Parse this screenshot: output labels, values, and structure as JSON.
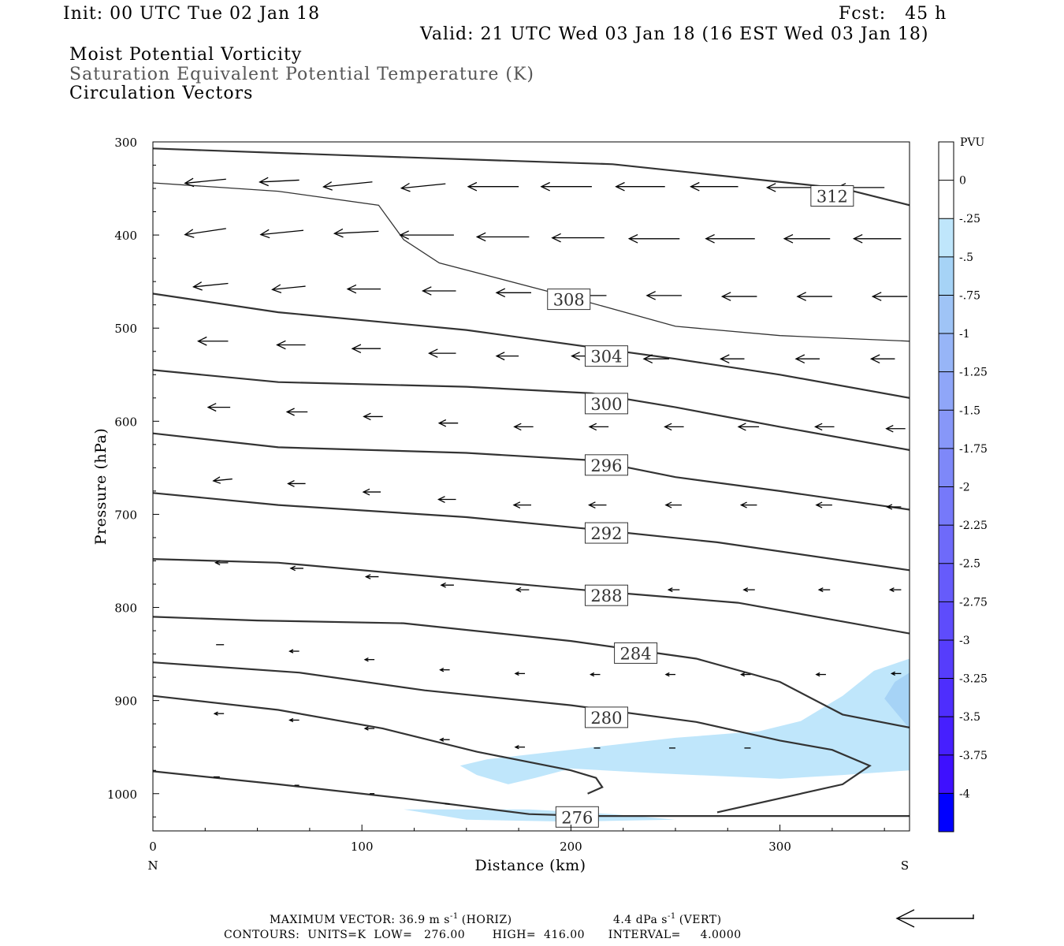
{
  "header": {
    "init": "Init: 00 UTC Tue 02 Jan 18",
    "fcst": "Fcst:   45 h",
    "valid": "Valid: 21 UTC Wed 03 Jan 18 (16 EST Wed 03 Jan 18)",
    "field1": "Moist Potential Vorticity",
    "field2": "Saturation Equivalent Potential Temperature (K)",
    "field3": "Circulation Vectors"
  },
  "colors": {
    "contour": "#333333",
    "pv_light": "#bfe6fb",
    "pv_mid": "#a6d3f6",
    "vector": "#000000"
  },
  "chart_data": {
    "type": "cross-section",
    "xlabel": "Distance (km)",
    "ylabel": "Pressure (hPa)",
    "xlim": [
      0,
      362
    ],
    "ylim": [
      300,
      1040
    ],
    "y_log_scale": false,
    "xticks": [
      0,
      100,
      200,
      300
    ],
    "yticks": [
      300,
      400,
      500,
      600,
      700,
      800,
      900,
      1000
    ],
    "x_end_labels": {
      "left": "N",
      "right": "S"
    },
    "theta_contours": [
      {
        "value": 312,
        "label": "312",
        "label_xy": [
          325,
          358
        ],
        "points": [
          [
            0,
            307
          ],
          [
            100,
            315
          ],
          [
            220,
            324
          ],
          [
            330,
            350
          ],
          [
            362,
            368
          ]
        ]
      },
      {
        "value": 308,
        "label": "308",
        "label_xy": [
          199,
          469
        ],
        "points": [
          [
            0,
            344
          ],
          [
            60,
            353
          ],
          [
            108,
            368
          ],
          [
            120,
            405
          ],
          [
            137,
            430
          ],
          [
            200,
            467
          ],
          [
            250,
            498
          ],
          [
            300,
            508
          ],
          [
            362,
            514
          ]
        ]
      },
      {
        "value": 304,
        "label": "304",
        "label_xy": [
          217,
          530
        ],
        "points": [
          [
            0,
            463
          ],
          [
            60,
            483
          ],
          [
            150,
            502
          ],
          [
            250,
            533
          ],
          [
            300,
            550
          ],
          [
            362,
            575
          ]
        ]
      },
      {
        "value": 300,
        "label": "300",
        "label_xy": [
          217,
          581
        ],
        "points": [
          [
            0,
            545
          ],
          [
            60,
            558
          ],
          [
            150,
            563
          ],
          [
            210,
            570
          ],
          [
            250,
            585
          ],
          [
            300,
            606
          ],
          [
            362,
            631
          ]
        ]
      },
      {
        "value": 296,
        "label": "296",
        "label_xy": [
          217,
          647
        ],
        "points": [
          [
            0,
            613
          ],
          [
            60,
            628
          ],
          [
            150,
            634
          ],
          [
            210,
            642
          ],
          [
            250,
            660
          ],
          [
            300,
            675
          ],
          [
            362,
            695
          ]
        ]
      },
      {
        "value": 292,
        "label": "292",
        "label_xy": [
          217,
          720
        ],
        "points": [
          [
            0,
            677
          ],
          [
            60,
            690
          ],
          [
            150,
            703
          ],
          [
            210,
            716
          ],
          [
            270,
            730
          ],
          [
            362,
            760
          ]
        ]
      },
      {
        "value": 288,
        "label": "288",
        "label_xy": [
          217,
          787
        ],
        "points": [
          [
            0,
            748
          ],
          [
            60,
            752
          ],
          [
            150,
            770
          ],
          [
            210,
            782
          ],
          [
            280,
            795
          ],
          [
            362,
            828
          ]
        ]
      },
      {
        "value": 284,
        "label": "284",
        "label_xy": [
          231,
          849
        ],
        "points": [
          [
            0,
            810
          ],
          [
            50,
            814
          ],
          [
            120,
            817
          ],
          [
            200,
            836
          ],
          [
            260,
            855
          ],
          [
            300,
            880
          ],
          [
            330,
            915
          ],
          [
            362,
            929
          ]
        ]
      },
      {
        "value": 280,
        "label": "280",
        "label_xy": [
          217,
          918
        ],
        "points": [
          [
            0,
            859
          ],
          [
            70,
            870
          ],
          [
            130,
            889
          ],
          [
            200,
            905
          ],
          [
            260,
            923
          ],
          [
            300,
            943
          ],
          [
            325,
            953
          ],
          [
            343,
            970
          ],
          [
            330,
            990
          ],
          [
            300,
            1005
          ],
          [
            270,
            1020
          ]
        ]
      },
      {
        "value": 276,
        "label": "276",
        "label_xy": [
          203,
          1025
        ],
        "points": [
          [
            0,
            895
          ],
          [
            60,
            910
          ],
          [
            110,
            930
          ],
          [
            155,
            955
          ],
          [
            200,
            975
          ],
          [
            212,
            983
          ],
          [
            215,
            993
          ],
          [
            208,
            1000
          ]
        ]
      },
      {
        "value": 276,
        "label": "",
        "label_xy": null,
        "points": [
          [
            0,
            976
          ],
          [
            60,
            990
          ],
          [
            120,
            1005
          ],
          [
            180,
            1022
          ],
          [
            210,
            1024
          ],
          [
            362,
            1024
          ]
        ]
      }
    ],
    "pv_shading": [
      {
        "level": "-0.25",
        "color": "#bfe6fb",
        "polygon": [
          [
            147,
            970
          ],
          [
            160,
            963
          ],
          [
            250,
            940
          ],
          [
            290,
            933
          ],
          [
            310,
            922
          ],
          [
            330,
            895
          ],
          [
            345,
            868
          ],
          [
            362,
            855
          ],
          [
            362,
            975
          ],
          [
            330,
            980
          ],
          [
            300,
            984
          ],
          [
            240,
            978
          ],
          [
            200,
            973
          ],
          [
            183,
            983
          ],
          [
            170,
            990
          ],
          [
            155,
            980
          ]
        ]
      },
      {
        "level": "-0.25",
        "color": "#bfe6fb",
        "polygon": [
          [
            120,
            1017
          ],
          [
            180,
            1017
          ],
          [
            220,
            1022
          ],
          [
            250,
            1028
          ],
          [
            200,
            1030
          ],
          [
            150,
            1028
          ]
        ]
      },
      {
        "level": "-0.5",
        "color": "#a6d3f6",
        "polygon": [
          [
            350,
            898
          ],
          [
            355,
            880
          ],
          [
            362,
            870
          ],
          [
            362,
            930
          ]
        ]
      }
    ],
    "vectors": [
      {
        "x": 35,
        "p": 340,
        "u": -1,
        "w": 0.02,
        "len": 26
      },
      {
        "x": 70,
        "p": 341,
        "u": -1,
        "w": 0.01,
        "len": 25
      },
      {
        "x": 105,
        "p": 343,
        "u": -1,
        "w": 0.02,
        "len": 31
      },
      {
        "x": 140,
        "p": 345,
        "u": -1,
        "w": 0.02,
        "len": 28
      },
      {
        "x": 175,
        "p": 348,
        "u": -1,
        "w": 0.0,
        "len": 32
      },
      {
        "x": 210,
        "p": 348,
        "u": -1,
        "w": 0.0,
        "len": 32
      },
      {
        "x": 245,
        "p": 348,
        "u": -1,
        "w": 0.0,
        "len": 31
      },
      {
        "x": 280,
        "p": 348,
        "u": -1,
        "w": 0.0,
        "len": 30
      },
      {
        "x": 315,
        "p": 349,
        "u": -1,
        "w": 0.0,
        "len": 28
      },
      {
        "x": 350,
        "p": 349,
        "u": -1,
        "w": 0.0,
        "len": 30
      },
      {
        "x": 35,
        "p": 393,
        "u": -1,
        "w": 0.03,
        "len": 26
      },
      {
        "x": 72,
        "p": 395,
        "u": -1,
        "w": 0.02,
        "len": 27
      },
      {
        "x": 108,
        "p": 396,
        "u": -1,
        "w": 0.01,
        "len": 28
      },
      {
        "x": 144,
        "p": 400,
        "u": -1,
        "w": 0.0,
        "len": 34
      },
      {
        "x": 180,
        "p": 402,
        "u": -1,
        "w": 0.0,
        "len": 33
      },
      {
        "x": 216,
        "p": 403,
        "u": -1,
        "w": 0.0,
        "len": 33
      },
      {
        "x": 252,
        "p": 404,
        "u": -1,
        "w": 0.0,
        "len": 32
      },
      {
        "x": 288,
        "p": 404,
        "u": -1,
        "w": 0.0,
        "len": 31
      },
      {
        "x": 324,
        "p": 404,
        "u": -1,
        "w": 0.0,
        "len": 29
      },
      {
        "x": 358,
        "p": 404,
        "u": -1,
        "w": 0.0,
        "len": 30
      },
      {
        "x": 36,
        "p": 452,
        "u": -1,
        "w": 0.02,
        "len": 22
      },
      {
        "x": 73,
        "p": 455,
        "u": -1,
        "w": 0.02,
        "len": 21
      },
      {
        "x": 109,
        "p": 458,
        "u": -1,
        "w": 0.0,
        "len": 21
      },
      {
        "x": 145,
        "p": 460,
        "u": -1,
        "w": 0.0,
        "len": 21
      },
      {
        "x": 181,
        "p": 462,
        "u": -1,
        "w": 0.0,
        "len": 22
      },
      {
        "x": 217,
        "p": 465,
        "u": -1,
        "w": 0.0,
        "len": 22
      },
      {
        "x": 253,
        "p": 465,
        "u": -1,
        "w": 0.0,
        "len": 22
      },
      {
        "x": 289,
        "p": 466,
        "u": -1,
        "w": 0.0,
        "len": 22
      },
      {
        "x": 325,
        "p": 466,
        "u": -1,
        "w": 0.0,
        "len": 22
      },
      {
        "x": 361,
        "p": 466,
        "u": -1,
        "w": 0.0,
        "len": 22
      },
      {
        "x": 36,
        "p": 514,
        "u": -1,
        "w": 0.0,
        "len": 19
      },
      {
        "x": 73,
        "p": 518,
        "u": -1,
        "w": 0.0,
        "len": 18
      },
      {
        "x": 109,
        "p": 522,
        "u": -1,
        "w": 0.0,
        "len": 18
      },
      {
        "x": 145,
        "p": 527,
        "u": -1,
        "w": 0.0,
        "len": 17
      },
      {
        "x": 175,
        "p": 530,
        "u": -1,
        "w": 0.0,
        "len": 14
      },
      {
        "x": 211,
        "p": 530,
        "u": -1,
        "w": 0.0,
        "len": 14
      },
      {
        "x": 247,
        "p": 533,
        "u": -1,
        "w": 0.0,
        "len": 16
      },
      {
        "x": 283,
        "p": 533,
        "u": -1,
        "w": 0.0,
        "len": 15
      },
      {
        "x": 319,
        "p": 533,
        "u": -1,
        "w": 0.0,
        "len": 15
      },
      {
        "x": 355,
        "p": 533,
        "u": -1,
        "w": 0.0,
        "len": 15
      },
      {
        "x": 37,
        "p": 585,
        "u": -1,
        "w": 0.0,
        "len": 14
      },
      {
        "x": 74,
        "p": 590,
        "u": -1,
        "w": 0.0,
        "len": 13
      },
      {
        "x": 110,
        "p": 595,
        "u": -1,
        "w": 0.0,
        "len": 12
      },
      {
        "x": 146,
        "p": 602,
        "u": -1,
        "w": 0.0,
        "len": 12
      },
      {
        "x": 182,
        "p": 606,
        "u": -1,
        "w": 0.0,
        "len": 12
      },
      {
        "x": 218,
        "p": 606,
        "u": -1,
        "w": 0.0,
        "len": 12
      },
      {
        "x": 254,
        "p": 606,
        "u": -1,
        "w": 0.0,
        "len": 12
      },
      {
        "x": 290,
        "p": 606,
        "u": -1,
        "w": 0.0,
        "len": 13
      },
      {
        "x": 326,
        "p": 606,
        "u": -1,
        "w": 0.0,
        "len": 12
      },
      {
        "x": 360,
        "p": 608,
        "u": -1,
        "w": 0.0,
        "len": 12
      },
      {
        "x": 38,
        "p": 662,
        "u": -1,
        "w": 0.02,
        "len": 12
      },
      {
        "x": 73,
        "p": 667,
        "u": -1,
        "w": 0.0,
        "len": 11
      },
      {
        "x": 109,
        "p": 676,
        "u": -1,
        "w": 0.0,
        "len": 11
      },
      {
        "x": 145,
        "p": 684,
        "u": -1,
        "w": 0.0,
        "len": 11
      },
      {
        "x": 181,
        "p": 690,
        "u": -1,
        "w": 0.0,
        "len": 11
      },
      {
        "x": 217,
        "p": 690,
        "u": -1,
        "w": 0.0,
        "len": 11
      },
      {
        "x": 253,
        "p": 690,
        "u": -1,
        "w": 0.0,
        "len": 10
      },
      {
        "x": 289,
        "p": 690,
        "u": -1,
        "w": 0.0,
        "len": 10
      },
      {
        "x": 325,
        "p": 690,
        "u": -1,
        "w": 0.0,
        "len": 10
      },
      {
        "x": 358,
        "p": 692,
        "u": -1,
        "w": 0.0,
        "len": 9
      },
      {
        "x": 36,
        "p": 752,
        "u": -1,
        "w": 0.0,
        "len": 8
      },
      {
        "x": 72,
        "p": 758,
        "u": -1,
        "w": 0.0,
        "len": 8
      },
      {
        "x": 108,
        "p": 767,
        "u": -1,
        "w": 0.0,
        "len": 8
      },
      {
        "x": 144,
        "p": 776,
        "u": -1,
        "w": 0.0,
        "len": 8
      },
      {
        "x": 180,
        "p": 781,
        "u": -1,
        "w": 0.0,
        "len": 8
      },
      {
        "x": 216,
        "p": 781,
        "u": -1,
        "w": 0.0,
        "len": 8
      },
      {
        "x": 252,
        "p": 781,
        "u": -1,
        "w": 0.0,
        "len": 7
      },
      {
        "x": 288,
        "p": 781,
        "u": -1,
        "w": 0.0,
        "len": 7
      },
      {
        "x": 324,
        "p": 781,
        "u": -1,
        "w": 0.0,
        "len": 7
      },
      {
        "x": 358,
        "p": 781,
        "u": -1,
        "w": 0.0,
        "len": 7
      },
      {
        "x": 34,
        "p": 840,
        "u": -1,
        "w": 0.0,
        "len": 5
      },
      {
        "x": 70,
        "p": 847,
        "u": -1,
        "w": 0.0,
        "len": 6
      },
      {
        "x": 106,
        "p": 856,
        "u": -1,
        "w": 0.0,
        "len": 6
      },
      {
        "x": 142,
        "p": 867,
        "u": -1,
        "w": 0.0,
        "len": 6
      },
      {
        "x": 178,
        "p": 871,
        "u": -1,
        "w": 0.0,
        "len": 6
      },
      {
        "x": 214,
        "p": 872,
        "u": -1,
        "w": 0.0,
        "len": 6
      },
      {
        "x": 250,
        "p": 872,
        "u": -1,
        "w": 0.0,
        "len": 6
      },
      {
        "x": 286,
        "p": 872,
        "u": -1,
        "w": 0.0,
        "len": 6
      },
      {
        "x": 322,
        "p": 872,
        "u": -1,
        "w": 0.0,
        "len": 6
      },
      {
        "x": 358,
        "p": 871,
        "u": -1,
        "w": 0.0,
        "len": 6
      },
      {
        "x": 34,
        "p": 914,
        "u": -1,
        "w": 0.0,
        "len": 6
      },
      {
        "x": 70,
        "p": 921,
        "u": -1,
        "w": 0.0,
        "len": 6
      },
      {
        "x": 106,
        "p": 930,
        "u": -1,
        "w": 0.0,
        "len": 6
      },
      {
        "x": 142,
        "p": 942,
        "u": -1,
        "w": 0.0,
        "len": 6
      },
      {
        "x": 178,
        "p": 950,
        "u": -1,
        "w": 0.0,
        "len": 6
      },
      {
        "x": 214,
        "p": 951,
        "u": -1,
        "w": 0.0,
        "len": 4
      },
      {
        "x": 250,
        "p": 951,
        "u": -1,
        "w": 0.0,
        "len": 4
      },
      {
        "x": 286,
        "p": 951,
        "u": -1,
        "w": 0.0,
        "len": 4
      },
      {
        "x": 32,
        "p": 982,
        "u": -1,
        "w": 0.0,
        "len": 4
      },
      {
        "x": 70,
        "p": 991,
        "u": -1,
        "w": 0.0,
        "len": 3
      },
      {
        "x": 106,
        "p": 1000,
        "u": -1,
        "w": 0.0,
        "len": 3
      },
      {
        "x": 142,
        "p": 1011,
        "u": -1,
        "w": 0.0,
        "len": 3
      }
    ],
    "colorbar": {
      "unit": "PVU",
      "labels": [
        "0",
        "-.25",
        "-.5",
        "-.75",
        "-1",
        "-1.25",
        "-1.5",
        "-1.75",
        "-2",
        "-2.25",
        "-2.5",
        "-2.75",
        "-3",
        "-3.25",
        "-3.5",
        "-3.75",
        "-4"
      ],
      "colors": [
        "#ffffff",
        "#ffffff",
        "#bfe6fb",
        "#a6d3f6",
        "#9fc4f6",
        "#97b5f7",
        "#8fa6f8",
        "#8797f8",
        "#7e88f9",
        "#7679fa",
        "#6e6afa",
        "#665bfb",
        "#5e4cfc",
        "#563dfc",
        "#4e2efd",
        "#461ffe",
        "#3e10fe",
        "#0000ff"
      ]
    },
    "max_vector_text": "MAXIMUM VECTOR:  36.9 m s",
    "max_vector_horiz": "(HORIZ)",
    "max_vector_vert": "4.4 dPa s",
    "max_vector_vert_unit": "(VERT)",
    "sup_minus1": "-1",
    "contours_text": "CONTOURS:  UNITS=K  LOW=   276.00       HIGH=  416.00      INTERVAL=     4.0000"
  }
}
